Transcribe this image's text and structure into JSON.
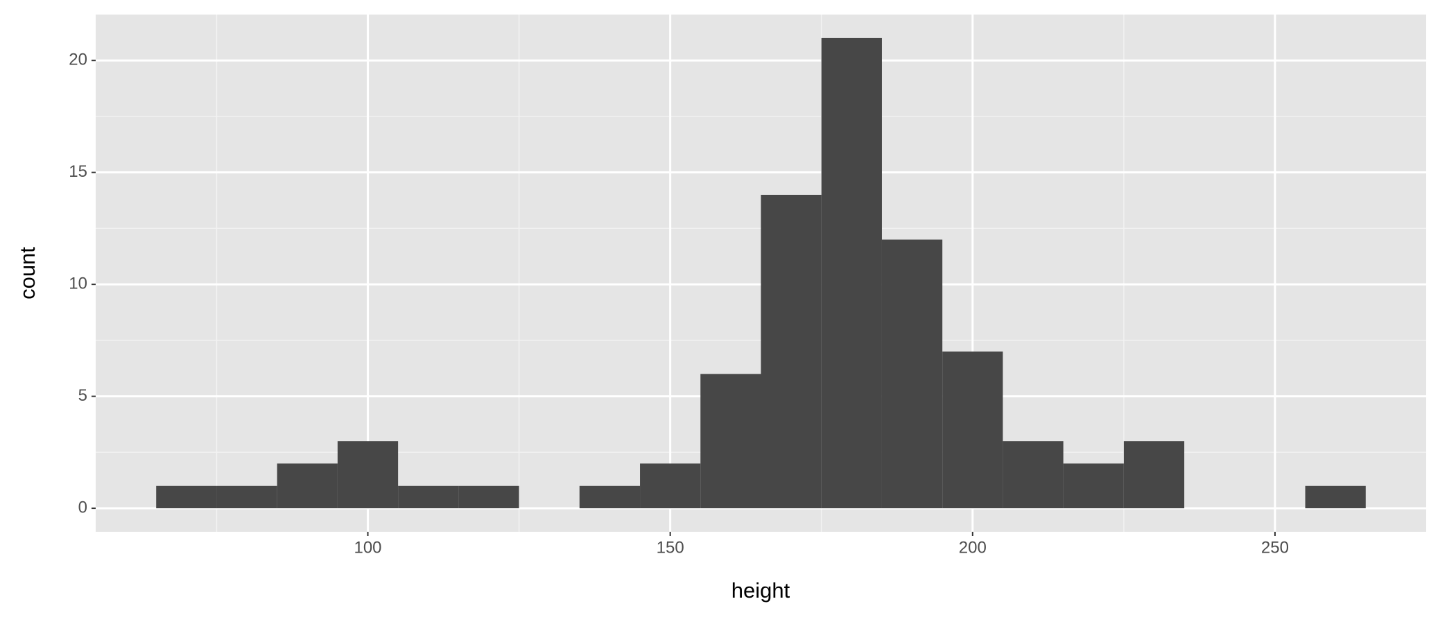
{
  "chart_data": {
    "type": "histogram",
    "x_label": "height",
    "y_label": "count",
    "bins": [
      65,
      75,
      85,
      95,
      105,
      115,
      125,
      135,
      145,
      155,
      165,
      175,
      185,
      195,
      205,
      215,
      225,
      235,
      245,
      255,
      265
    ],
    "values": [
      1,
      1,
      2,
      3,
      1,
      1,
      0,
      1,
      2,
      6,
      14,
      21,
      12,
      7,
      3,
      2,
      3,
      0,
      0,
      1
    ],
    "color": "#474747",
    "xlim": [
      55,
      275
    ],
    "xticks": [
      100,
      150,
      200,
      250
    ],
    "ylim": [
      -1.05,
      22.05
    ],
    "yticks": [
      0,
      5,
      10,
      15,
      20
    ],
    "grid": true
  }
}
